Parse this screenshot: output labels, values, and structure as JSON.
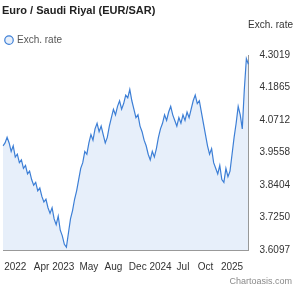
{
  "chart_data": {
    "type": "line",
    "title": "Euro / Saudi Riyal (EUR/SAR)",
    "y_label": "Exch. rate",
    "source": "Chartoasis.com",
    "legend": "top",
    "grid": false,
    "ylim": [
      3.6097,
      4.3019
    ],
    "yticks": [
      3.6097,
      {
        "value": 3.725,
        "label": "3.7250"
      },
      3.8404,
      3.9558,
      4.0712,
      4.1865,
      4.3019
    ],
    "categories": [
      null,
      null,
      null,
      null,
      null,
      null,
      "2022",
      null,
      null,
      null,
      null,
      null,
      null,
      null,
      null,
      null,
      null,
      null,
      null,
      null,
      null,
      null,
      null,
      null,
      null,
      "Apr 2023",
      null,
      null,
      null,
      null,
      null,
      null,
      null,
      null,
      null,
      null,
      null,
      null,
      null,
      null,
      null,
      null,
      "May",
      null,
      null,
      null,
      null,
      null,
      null,
      null,
      null,
      null,
      null,
      null,
      "Aug",
      null,
      null,
      null,
      null,
      null,
      null,
      null,
      null,
      null,
      null,
      null,
      null,
      null,
      null,
      null,
      null,
      null,
      "Dec 2024",
      null,
      null,
      null,
      null,
      null,
      null,
      null,
      null,
      null,
      null,
      null,
      null,
      null,
      null,
      null,
      "Jul",
      null,
      null,
      null,
      null,
      null,
      null,
      null,
      null,
      null,
      null,
      "Oct",
      null,
      null,
      null,
      null,
      null,
      null,
      null,
      null,
      null,
      null,
      null,
      null,
      "2025",
      null,
      null,
      null,
      null,
      null,
      null,
      null,
      null
    ],
    "series": [
      {
        "name": "Exch. rate",
        "color": "#3d7fd6",
        "values": [
          3.98,
          3.99,
          4.01,
          3.99,
          3.96,
          3.98,
          3.94,
          3.95,
          3.92,
          3.93,
          3.9,
          3.91,
          3.88,
          3.89,
          3.86,
          3.84,
          3.85,
          3.82,
          3.83,
          3.8,
          3.78,
          3.79,
          3.76,
          3.74,
          3.76,
          3.72,
          3.7,
          3.73,
          3.68,
          3.66,
          3.63,
          3.62,
          3.67,
          3.72,
          3.75,
          3.79,
          3.82,
          3.86,
          3.9,
          3.92,
          3.96,
          3.95,
          3.99,
          4.02,
          4.0,
          4.04,
          4.06,
          4.03,
          4.05,
          4.02,
          3.99,
          4.01,
          4.05,
          4.08,
          4.11,
          4.09,
          4.12,
          4.14,
          4.11,
          4.13,
          4.16,
          4.15,
          4.18,
          4.14,
          4.11,
          4.08,
          4.09,
          4.05,
          4.03,
          4.0,
          3.98,
          3.95,
          3.93,
          3.96,
          3.94,
          3.97,
          4.01,
          4.04,
          4.06,
          4.09,
          4.07,
          4.1,
          4.12,
          4.09,
          4.07,
          4.05,
          4.08,
          4.06,
          4.09,
          4.07,
          4.1,
          4.08,
          4.11,
          4.14,
          4.16,
          4.13,
          4.14,
          4.1,
          4.06,
          4.02,
          3.98,
          3.95,
          3.97,
          3.92,
          3.9,
          3.88,
          3.91,
          3.86,
          3.85,
          3.9,
          3.87,
          3.89,
          3.95,
          4.01,
          4.06,
          4.12,
          4.09,
          4.04,
          4.18,
          4.29,
          4.27
        ]
      }
    ]
  }
}
